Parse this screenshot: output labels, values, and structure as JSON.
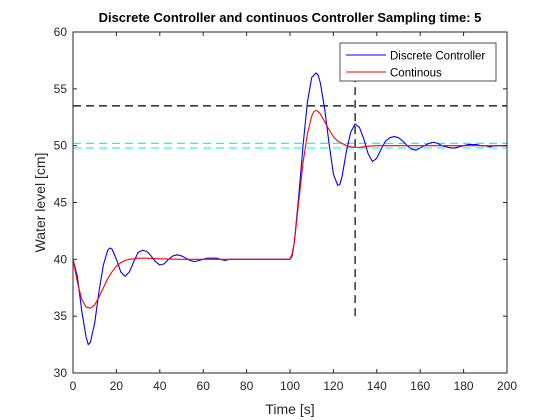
{
  "chart_data": {
    "type": "line",
    "title": "Discrete Controller and continuos Controller Sampling time: 5",
    "xlabel": "Time [s]",
    "ylabel": "Water level [cm]",
    "xlim": [
      0,
      200
    ],
    "ylim": [
      30,
      60
    ],
    "xticks": [
      0,
      20,
      40,
      60,
      80,
      100,
      120,
      140,
      160,
      180,
      200
    ],
    "yticks": [
      30,
      35,
      40,
      45,
      50,
      55,
      60
    ],
    "grid": false,
    "legend_location": "top-right",
    "series": [
      {
        "name": "Discrete Controller",
        "color": "#0000ff",
        "x": [
          0,
          2,
          4,
          6,
          7,
          8,
          10,
          12,
          14,
          16,
          17,
          18,
          20,
          22,
          24,
          26,
          28,
          30,
          32,
          34,
          36,
          38,
          40,
          42,
          44,
          46,
          48,
          50,
          52,
          54,
          56,
          58,
          60,
          62,
          64,
          66,
          68,
          70,
          72,
          75,
          80,
          85,
          90,
          95,
          100,
          101,
          102,
          104,
          106,
          108,
          110,
          112,
          113,
          114,
          116,
          118,
          120,
          122,
          123,
          124,
          126,
          128,
          130,
          132,
          134,
          136,
          138,
          140,
          142,
          144,
          146,
          148,
          150,
          152,
          154,
          156,
          158,
          160,
          162,
          164,
          166,
          168,
          170,
          172,
          174,
          176,
          178,
          180,
          182,
          184,
          186,
          188,
          190,
          192,
          194,
          196,
          198,
          200
        ],
        "y": [
          40.0,
          38.5,
          35.5,
          33.2,
          32.5,
          32.7,
          34.4,
          37.2,
          39.5,
          40.8,
          41.0,
          40.9,
          40.0,
          38.9,
          38.5,
          38.9,
          39.8,
          40.6,
          40.8,
          40.7,
          40.3,
          39.8,
          39.5,
          39.6,
          40.0,
          40.3,
          40.4,
          40.3,
          40.1,
          39.9,
          39.8,
          39.9,
          40.0,
          40.1,
          40.1,
          40.1,
          40.0,
          39.9,
          40.0,
          40.0,
          40.0,
          40.0,
          40.0,
          40.0,
          40.0,
          40.3,
          41.5,
          45.5,
          50.0,
          53.8,
          56.0,
          56.4,
          56.2,
          55.5,
          53.2,
          50.2,
          47.5,
          46.5,
          46.6,
          47.3,
          49.5,
          51.2,
          51.9,
          51.6,
          50.6,
          49.3,
          48.6,
          48.9,
          49.7,
          50.4,
          50.7,
          50.8,
          50.7,
          50.4,
          50.0,
          49.7,
          49.6,
          49.8,
          50.0,
          50.2,
          50.3,
          50.2,
          50.0,
          49.9,
          49.8,
          49.8,
          49.9,
          50.0,
          50.1,
          50.1,
          50.1,
          50.0,
          50.0,
          49.9,
          50.0,
          50.0,
          50.0,
          50.0
        ]
      },
      {
        "name": "Continous",
        "color": "#ff0000",
        "x": [
          0,
          2,
          4,
          6,
          8,
          10,
          12,
          14,
          16,
          18,
          20,
          22,
          24,
          26,
          28,
          30,
          34,
          40,
          50,
          60,
          70,
          80,
          90,
          95,
          100,
          101,
          102,
          104,
          106,
          108,
          110,
          111,
          112,
          113,
          114,
          116,
          118,
          120,
          122,
          124,
          126,
          128,
          130,
          132,
          134,
          136,
          140,
          145,
          150,
          160,
          170,
          180,
          190,
          200
        ],
        "y": [
          40.0,
          38.0,
          36.5,
          35.8,
          35.7,
          36.0,
          36.7,
          37.5,
          38.3,
          38.9,
          39.4,
          39.7,
          39.9,
          40.0,
          40.05,
          40.1,
          40.1,
          40.05,
          40.0,
          40.0,
          40.0,
          40.0,
          40.0,
          40.0,
          40.0,
          40.5,
          41.5,
          45.0,
          48.5,
          51.0,
          52.6,
          53.0,
          53.1,
          53.0,
          52.8,
          52.1,
          51.4,
          50.8,
          50.4,
          50.2,
          50.0,
          49.9,
          49.85,
          49.85,
          49.9,
          49.95,
          50.0,
          50.0,
          50.0,
          50.0,
          50.0,
          50.0,
          50.0,
          50.0
        ]
      }
    ],
    "reference_lines": [
      {
        "orientation": "horizontal",
        "value": 53.5,
        "color": "#000000",
        "style": "dashed"
      },
      {
        "orientation": "horizontal",
        "value": 50.2,
        "color": "#00ffff",
        "style": "dashed"
      },
      {
        "orientation": "horizontal",
        "value": 49.8,
        "color": "#00ffff",
        "style": "dashed"
      },
      {
        "orientation": "vertical",
        "value": 130,
        "range": [
          35,
          56.5
        ],
        "color": "#000000",
        "style": "dashed"
      }
    ]
  }
}
